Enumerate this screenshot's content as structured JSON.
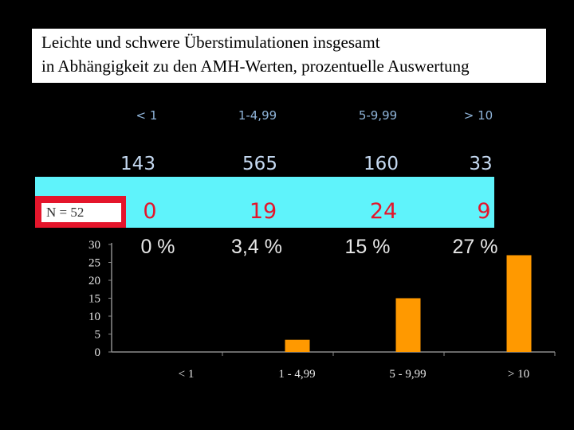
{
  "title": {
    "line1": "Leichte und schwere Überstimulationen insgesamt",
    "line2": "in Abhängigkeit zu den AMH-Werten, prozentuelle Auswertung"
  },
  "table": {
    "headers": [
      "< 1",
      "1-4,99",
      "5-9,99",
      "> 10"
    ],
    "counts": [
      "143",
      "565",
      "160",
      "33"
    ],
    "n_label": "N = 52",
    "cases": [
      "0",
      "19",
      "24",
      "9"
    ],
    "percents": [
      "0 %",
      "3,4 %",
      "15 %",
      "27 %"
    ]
  },
  "chart_data": {
    "type": "bar",
    "categories": [
      "< 1",
      "1 - 4,99",
      "5 - 9,99",
      "> 10"
    ],
    "values": [
      0,
      3.4,
      15,
      27
    ],
    "ylim": [
      0,
      30
    ],
    "yticks": [
      0,
      5,
      10,
      15,
      20,
      25,
      30
    ],
    "bar_color": "#ff9900",
    "grid": false
  },
  "colors": {
    "background": "#000000",
    "highlight": "#5ff3fb",
    "accent_red": "#e4152b",
    "bar": "#ff9900"
  }
}
